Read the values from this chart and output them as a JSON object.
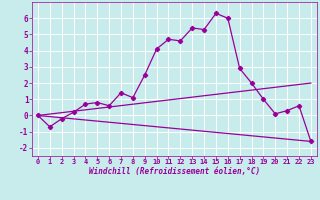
{
  "xlabel": "Windchill (Refroidissement éolien,°C)",
  "background_color": "#c8ecec",
  "grid_color": "#ffffff",
  "line_color": "#990099",
  "xlim": [
    -0.5,
    23.5
  ],
  "ylim": [
    -2.5,
    7.0
  ],
  "xticks": [
    0,
    1,
    2,
    3,
    4,
    5,
    6,
    7,
    8,
    9,
    10,
    11,
    12,
    13,
    14,
    15,
    16,
    17,
    18,
    19,
    20,
    21,
    22,
    23
  ],
  "yticks": [
    -2,
    -1,
    0,
    1,
    2,
    3,
    4,
    5,
    6
  ],
  "series": [
    {
      "x": [
        0,
        1,
        2,
        3,
        4,
        5,
        6,
        7,
        8,
        9,
        10,
        11,
        12,
        13,
        14,
        15,
        16,
        17,
        18,
        19,
        20,
        21,
        22,
        23
      ],
      "y": [
        0.0,
        -0.7,
        -0.2,
        0.2,
        0.7,
        0.8,
        0.6,
        1.4,
        1.1,
        2.5,
        4.1,
        4.7,
        4.6,
        5.4,
        5.3,
        6.3,
        6.0,
        2.9,
        2.0,
        1.0,
        0.1,
        0.3,
        0.6,
        -1.6
      ],
      "marker": true
    },
    {
      "x": [
        0,
        23
      ],
      "y": [
        0.0,
        2.0
      ],
      "marker": false
    },
    {
      "x": [
        0,
        23
      ],
      "y": [
        0.0,
        -1.6
      ],
      "marker": false
    }
  ],
  "xlabel_fontsize": 5.5,
  "tick_fontsize_x": 5.0,
  "tick_fontsize_y": 5.5,
  "linewidth": 0.9,
  "markersize": 2.2
}
